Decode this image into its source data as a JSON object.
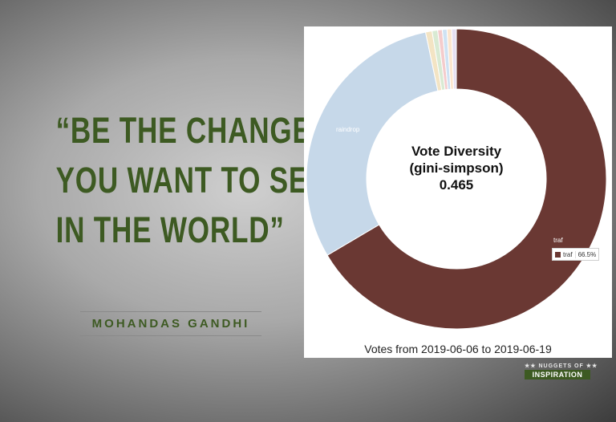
{
  "quote": {
    "lines": [
      "“BE THE CHANGE",
      "YOU WANT TO SEE",
      "IN THE WORLD”"
    ],
    "author": "MOHANDAS GANDHI"
  },
  "badge": {
    "top": "★★ NUGGETS OF ★★",
    "bottom": "INSPIRATION"
  },
  "chart_data": {
    "type": "pie",
    "style": "donut",
    "center_title": [
      "Vote Diversity",
      "(gini-simpson)",
      "0.465"
    ],
    "footer": "Votes from 2019-06-06 to 2019-06-19",
    "slices": [
      {
        "label": "traf",
        "percent": 66.5,
        "color": "#6a3833"
      },
      {
        "label": "raindrop",
        "percent": 30.2,
        "color": "#c6d8e9"
      },
      {
        "label": "",
        "percent": 0.7,
        "color": "#f3e4c4"
      },
      {
        "label": "",
        "percent": 0.6,
        "color": "#d9ead3"
      },
      {
        "label": "",
        "percent": 0.5,
        "color": "#f4cccc"
      },
      {
        "label": "",
        "percent": 0.5,
        "color": "#cfe2f3"
      },
      {
        "label": "",
        "percent": 0.5,
        "color": "#fce5cd"
      },
      {
        "label": "",
        "percent": 0.5,
        "color": "#e6dff2"
      }
    ],
    "tooltip": {
      "label": "traf",
      "value": "66.5%"
    }
  }
}
